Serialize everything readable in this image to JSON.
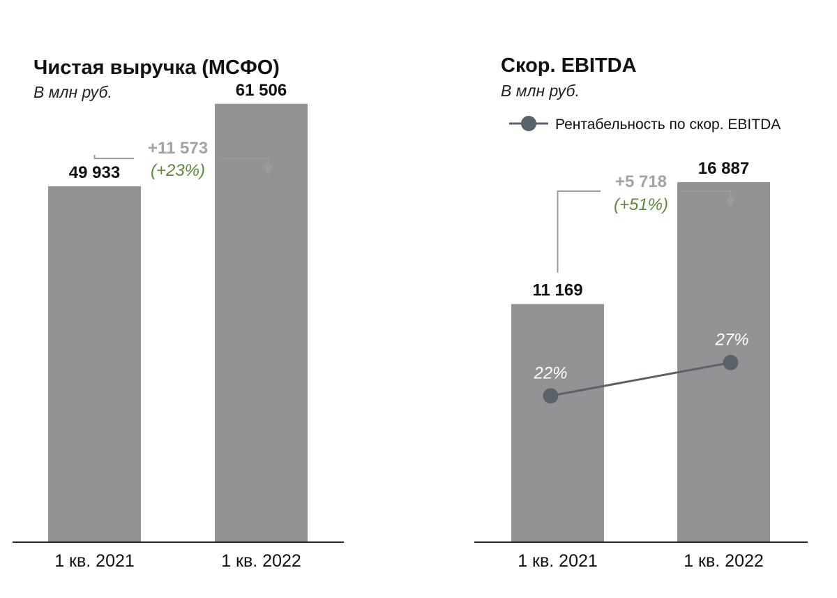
{
  "colors": {
    "bar": "#939396",
    "axis": "#222222",
    "bracket": "#9b9b9b",
    "delta": "#a3a3a3",
    "pct": "#5e8a3c",
    "line": "#59626a"
  },
  "chart_data": [
    {
      "type": "bar",
      "title": "Чистая выручка (МСФО)",
      "subtitle": "В млн руб.",
      "categories": [
        "1 кв. 2021",
        "1 кв. 2022"
      ],
      "values": [
        49933,
        61506
      ],
      "value_labels": [
        "49 933",
        "61 506"
      ],
      "ylim": [
        0,
        70000
      ],
      "change": {
        "abs_label": "+11 573",
        "pct_label": "(+23%)"
      }
    },
    {
      "type": "bar",
      "title": "Скор. EBITDA",
      "subtitle": "В млн руб.",
      "categories": [
        "1 кв. 2021",
        "1 кв. 2022"
      ],
      "values": [
        11169,
        16887
      ],
      "value_labels": [
        "11 169",
        "16 887"
      ],
      "ylim": [
        0,
        23400
      ],
      "change": {
        "abs_label": "+5 718",
        "pct_label": "(+51%)"
      },
      "line_series": {
        "name": "Рентабельность по скор. EBITDA",
        "values": [
          22,
          27
        ],
        "labels": [
          "22%",
          "27%"
        ],
        "ylim": [
          0,
          75
        ]
      },
      "legend": "top-right"
    }
  ]
}
